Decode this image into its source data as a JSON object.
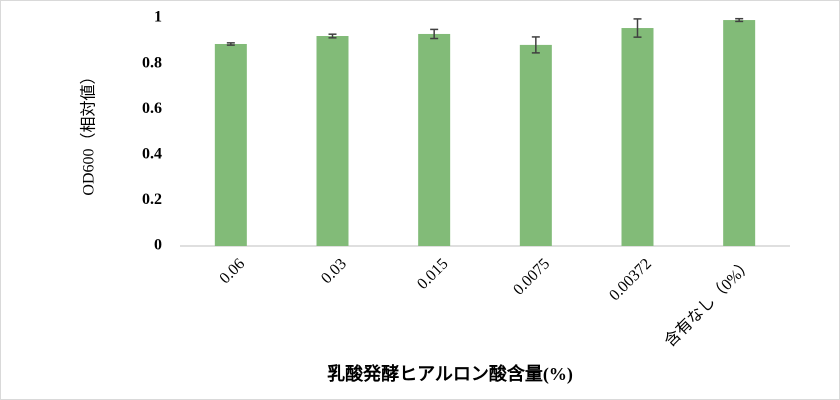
{
  "chart_data": {
    "type": "bar",
    "categories": [
      "0.06",
      "0.03",
      "0.015",
      "0.0075",
      "0.00372",
      "含有なし（0%）"
    ],
    "values": [
      0.886,
      0.921,
      0.93,
      0.882,
      0.956,
      0.991
    ],
    "errors": [
      0.005,
      0.008,
      0.02,
      0.035,
      0.04,
      0.006
    ],
    "color": "#82bb78",
    "ylim": [
      0,
      1
    ],
    "yticks": [
      0,
      0.2,
      0.4,
      0.6,
      0.8,
      1
    ],
    "y_label": "OD600（相対値）",
    "x_label": "乳酸発酵ヒアルロン酸含量(%)",
    "grid": false
  }
}
